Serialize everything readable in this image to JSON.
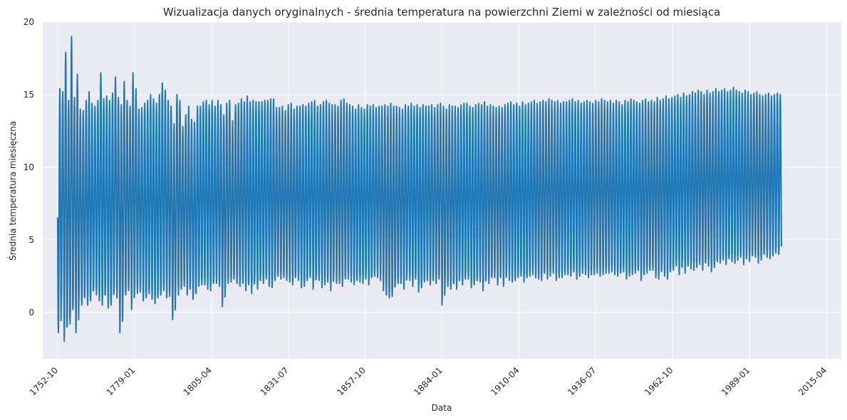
{
  "chart_data": {
    "type": "line",
    "title": "Wizualizacja danych oryginalnych - średnia temperatura na powierzchni Ziemi w zależności od miesiąca",
    "xlabel": "Data",
    "ylabel": "Średnia temperatura miesięczna",
    "x_axis": {
      "type": "date",
      "range": [
        "1747-09",
        "2020-05"
      ],
      "ticks": [
        "1752-10",
        "1779-01",
        "1805-04",
        "1831-07",
        "1857-10",
        "1884-01",
        "1910-04",
        "1936-07",
        "1962-10",
        "1989-01",
        "2015-04"
      ]
    },
    "y_axis": {
      "range": [
        -3.2,
        20
      ],
      "ticks": [
        0,
        5,
        10,
        15,
        20
      ]
    },
    "grid": true,
    "legend": "none",
    "series": [
      {
        "color": "#1f77b4",
        "x_start": "1752-10",
        "x_end": "2015-12",
        "step": "month",
        "annual_min": [
          -1.2,
          -1.4,
          0.5,
          -2.0,
          -1.0,
          -0.8,
          0.3,
          -1.4,
          0.8,
          0.5,
          1.0,
          0.5,
          0.8,
          1.5,
          1.2,
          0.8,
          0.5,
          1.2,
          0.3,
          0.5,
          1.5,
          1.0,
          -1.4,
          0.8,
          1.2,
          1.5,
          0.2,
          1.2,
          1.3,
          1.4,
          0.8,
          1.0,
          1.3,
          0.9,
          0.6,
          1.0,
          1.2,
          1.5,
          1.0,
          1.1,
          -0.5,
          1.4,
          1.2,
          1.6,
          1.8,
          1.2,
          1.6,
          0.9,
          1.3,
          1.8,
          1.9,
          1.9,
          1.6,
          1.5,
          2.0,
          2.0,
          1.8,
          0.4,
          1.9,
          2.0,
          2.1,
          2.3,
          2.0,
          1.8,
          2.0,
          1.5,
          1.9,
          1.3,
          2.1,
          1.6,
          2.2,
          2.0,
          2.3,
          1.8,
          1.7,
          2.2,
          2.5,
          2.3,
          2.4,
          2.2,
          2.1,
          1.9,
          2.4,
          2.2,
          1.7,
          1.8,
          2.2,
          2.4,
          1.6,
          2.3,
          2.2,
          1.7,
          1.9,
          2.1,
          1.5,
          2.4,
          2.0,
          2.0,
          1.8,
          2.3,
          2.3,
          2.1,
          1.9,
          2.2,
          2.1,
          2.0,
          2.3,
          1.9,
          2.4,
          2.5,
          2.4,
          2.2,
          1.5,
          1.2,
          1.0,
          1.1,
          1.8,
          2.0,
          2.0,
          1.6,
          2.5,
          2.2,
          1.8,
          2.3,
          1.4,
          1.7,
          2.1,
          2.2,
          1.9,
          2.2,
          2.0,
          2.3,
          0.5,
          1.9,
          1.8,
          1.6,
          2.0,
          1.6,
          2.2,
          1.9,
          2.3,
          2.3,
          1.7,
          1.9,
          2.2,
          2.1,
          1.5,
          2.3,
          2.0,
          2.4,
          2.4,
          1.9,
          2.4,
          1.8,
          2.5,
          2.2,
          2.1,
          2.2,
          2.4,
          2.5,
          2.1,
          2.4,
          2.5,
          2.6,
          2.4,
          2.3,
          2.2,
          2.7,
          2.3,
          2.5,
          2.7,
          2.2,
          2.4,
          2.4,
          2.6,
          2.6,
          2.5,
          2.8,
          2.3,
          2.5,
          2.7,
          2.6,
          2.4,
          2.6,
          2.6,
          2.7,
          2.5,
          2.6,
          2.7,
          2.7,
          2.8,
          2.6,
          2.5,
          2.7,
          2.8,
          2.3,
          2.5,
          2.6,
          2.7,
          2.9,
          2.2,
          2.6,
          2.7,
          2.9,
          2.9,
          2.4,
          2.3,
          2.8,
          2.5,
          2.3,
          2.8,
          2.9,
          3.2,
          2.6,
          3.1,
          2.7,
          3.2,
          3.0,
          2.9,
          3.1,
          3.3,
          2.9,
          3.4,
          3.2,
          2.8,
          3.1,
          3.5,
          3.4,
          3.6,
          3.3,
          3.7,
          3.5,
          3.4,
          3.6,
          3.8,
          3.3,
          3.7,
          3.5,
          3.9,
          3.8,
          3.4,
          3.6,
          4.0,
          3.8,
          3.7,
          3.9,
          4.1,
          4.0,
          3.6,
          3.9,
          4.0,
          4.2,
          3.8,
          3.9,
          4.1,
          4.0,
          4.3,
          4.1,
          4.2,
          3.9,
          4.4
        ],
        "annual_max": [
          15.1,
          15.4,
          15.2,
          17.9,
          14.6,
          19.0,
          14.8,
          16.4,
          14.0,
          13.9,
          14.6,
          15.2,
          14.4,
          14.2,
          14.6,
          16.5,
          14.7,
          14.9,
          14.6,
          15.1,
          16.2,
          14.8,
          14.3,
          15.9,
          14.6,
          14.2,
          16.5,
          15.4,
          14.0,
          14.1,
          14.4,
          14.6,
          15.0,
          14.7,
          14.4,
          15.0,
          15.8,
          15.3,
          14.6,
          14.2,
          13.0,
          15.0,
          14.6,
          12.8,
          13.6,
          14.2,
          13.3,
          13.1,
          14.2,
          14.2,
          14.5,
          14.6,
          14.3,
          14.6,
          14.2,
          14.6,
          14.3,
          13.6,
          14.4,
          14.6,
          13.2,
          14.3,
          14.4,
          14.7,
          14.5,
          14.9,
          14.5,
          14.6,
          14.5,
          14.5,
          14.5,
          14.6,
          14.6,
          14.7,
          14.7,
          14.1,
          14.1,
          14.2,
          13.9,
          14.3,
          14.4,
          14.0,
          14.2,
          14.2,
          14.3,
          14.2,
          14.4,
          14.5,
          14.6,
          14.2,
          14.3,
          14.5,
          14.6,
          14.4,
          14.3,
          14.3,
          14.2,
          14.6,
          14.7,
          14.4,
          14.3,
          14.2,
          14.0,
          14.3,
          14.1,
          14.0,
          14.3,
          14.2,
          14.3,
          14.1,
          14.2,
          14.2,
          14.3,
          14.2,
          14.4,
          14.2,
          14.2,
          14.1,
          14.0,
          14.3,
          14.2,
          14.4,
          14.2,
          14.3,
          14.1,
          14.3,
          14.2,
          14.2,
          14.3,
          14.1,
          14.3,
          14.4,
          14.2,
          14.0,
          14.3,
          14.2,
          14.2,
          14.1,
          14.3,
          14.4,
          14.4,
          14.2,
          14.1,
          14.3,
          14.4,
          14.3,
          14.5,
          14.2,
          14.3,
          14.2,
          14.1,
          14.2,
          14.1,
          14.3,
          14.4,
          14.5,
          14.3,
          14.4,
          14.2,
          14.5,
          14.3,
          14.4,
          14.5,
          14.6,
          14.4,
          14.5,
          14.6,
          14.5,
          14.7,
          14.6,
          14.5,
          14.6,
          14.4,
          14.5,
          14.5,
          14.6,
          14.7,
          14.5,
          14.6,
          14.4,
          14.5,
          14.6,
          14.5,
          14.4,
          14.6,
          14.5,
          14.7,
          14.6,
          14.5,
          14.6,
          14.4,
          14.6,
          14.5,
          14.3,
          14.6,
          14.5,
          14.7,
          14.6,
          14.5,
          14.4,
          14.6,
          14.7,
          14.5,
          14.6,
          14.5,
          14.8,
          14.6,
          14.7,
          14.9,
          14.7,
          14.8,
          14.9,
          15.0,
          14.8,
          15.1,
          14.9,
          15.0,
          15.2,
          15.1,
          15.3,
          15.2,
          15.0,
          15.3,
          15.1,
          15.2,
          15.4,
          15.2,
          15.3,
          15.4,
          15.2,
          15.3,
          15.5,
          15.3,
          15.2,
          15.1,
          15.3,
          15.2,
          15.0,
          15.1,
          15.2,
          15.0,
          14.9,
          15.0,
          15.1,
          14.9,
          15.0,
          15.1,
          15.0
        ],
        "last_value": 5.5
      }
    ]
  }
}
